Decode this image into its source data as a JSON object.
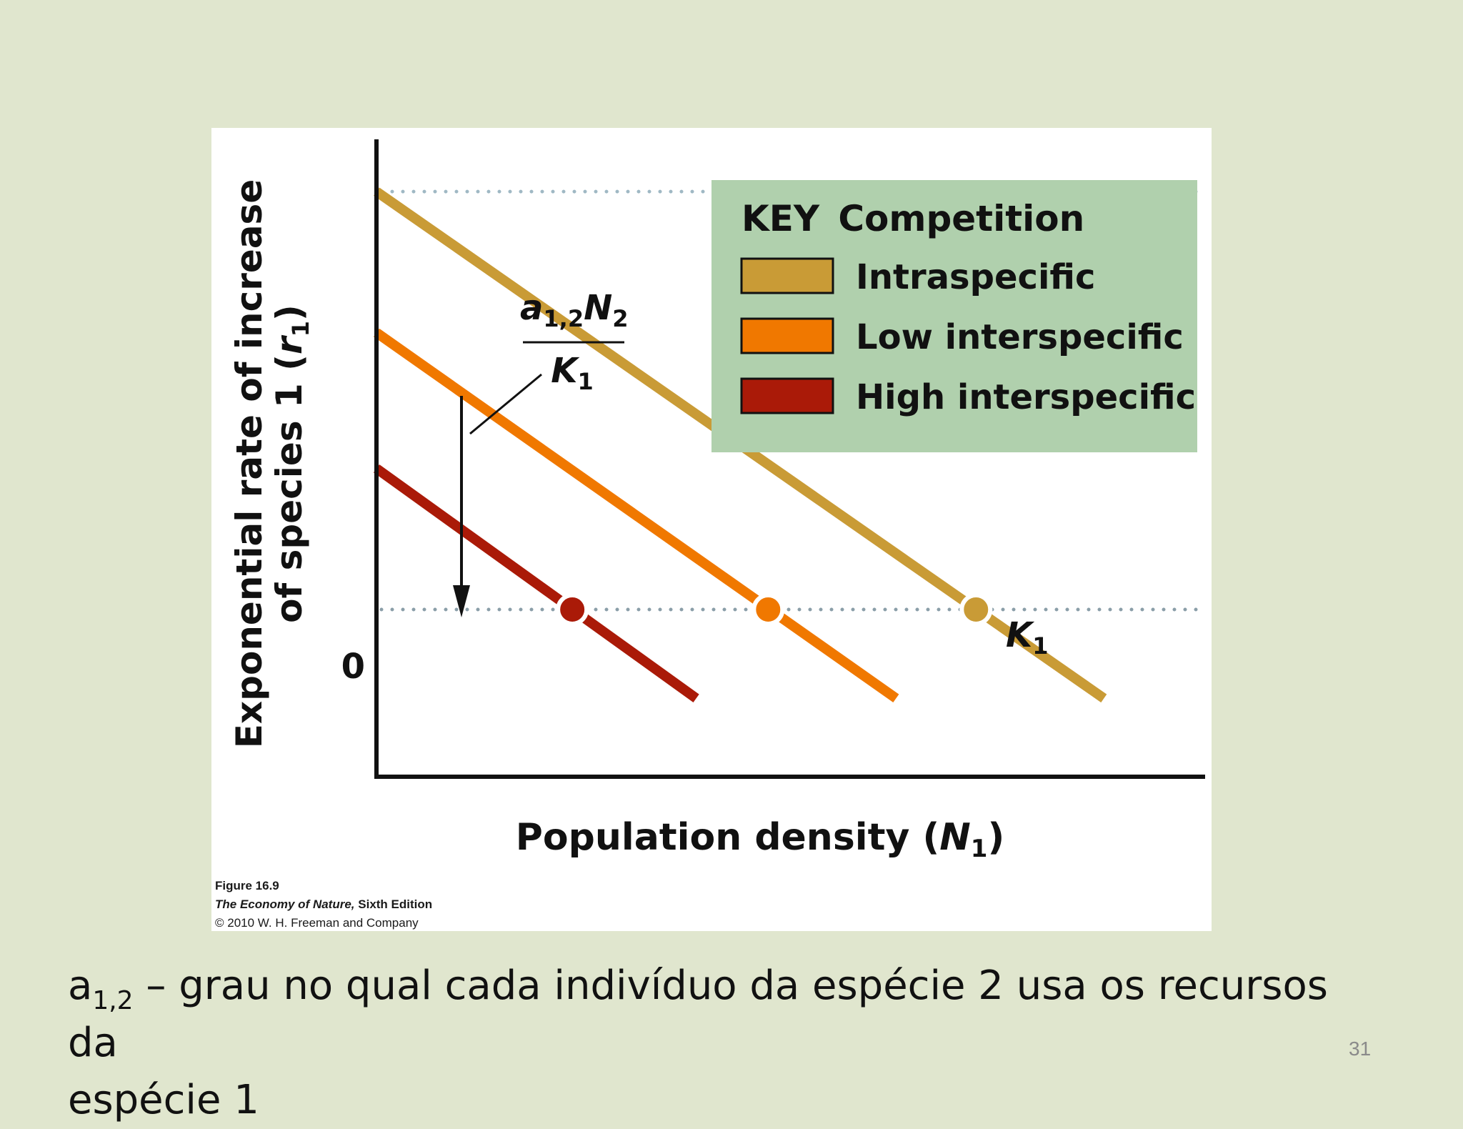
{
  "chart_data": {
    "type": "line",
    "title": "",
    "xlabel": "Population density (N1)",
    "ylabel": "Exponential rate of increase of species 1 (r1)",
    "x_axis_label": {
      "main": "Population density (",
      "var": "N",
      "sub": "1",
      "end": ")"
    },
    "y_axis_label": {
      "line1": "Exponential rate of increase",
      "line2_main": "of species 1 (",
      "line2_var": "r",
      "line2_sub": "1",
      "line2_end": ")"
    },
    "y_tick_labels": [
      "0"
    ],
    "xlim": [
      0,
      10
    ],
    "ylim": [
      -1.6,
      4.5
    ],
    "grid": false,
    "reference_lines": [
      {
        "axis": "y",
        "value": 4.0,
        "style": "dotted",
        "color": "#9fb8c4"
      },
      {
        "axis": "y",
        "value": 0,
        "style": "dotted",
        "color": "#8a9ea8"
      }
    ],
    "legend": {
      "placement": "top-right",
      "key_label": "KEY",
      "title": "Competition",
      "background": "#b0d0ad",
      "entries": [
        "Intraspecific",
        "Low interspecific",
        "High interspecific"
      ]
    },
    "series": [
      {
        "name": "Intraspecific",
        "color": "#c99b36",
        "x": [
          0,
          9.1
        ],
        "y": [
          4.0,
          -0.85
        ],
        "k_intercept": 7.5
      },
      {
        "name": "Low interspecific",
        "color": "#f07800",
        "x": [
          0,
          6.5
        ],
        "y": [
          2.65,
          -0.85
        ],
        "k_intercept": 4.9
      },
      {
        "name": "High interspecific",
        "color": "#aa1a08",
        "x": [
          0,
          4.0
        ],
        "y": [
          1.35,
          -0.85
        ],
        "k_intercept": 2.45
      }
    ],
    "annotations": [
      {
        "kind": "fraction",
        "numerator_main": "a",
        "numerator_sub": "1,2",
        "numerator_var": "N",
        "numerator_var_sub": "2",
        "denominator_var": "K",
        "denominator_sub": "1"
      },
      {
        "kind": "point-label",
        "var": "K",
        "sub": "1"
      }
    ]
  },
  "figure_credit": {
    "figure_number": "Figure 16.9",
    "book_title": "The Economy of Nature,",
    "edition": " Sixth Edition",
    "copyright": "© 2010 W. H. Freeman and Company"
  },
  "caption": {
    "symbol": "a",
    "symbol_sub": "1,2",
    "line1_rest": " – grau no qual cada indivíduo da espécie 2 usa os recursos da",
    "line2": "espécie 1"
  },
  "slide_number": "31"
}
